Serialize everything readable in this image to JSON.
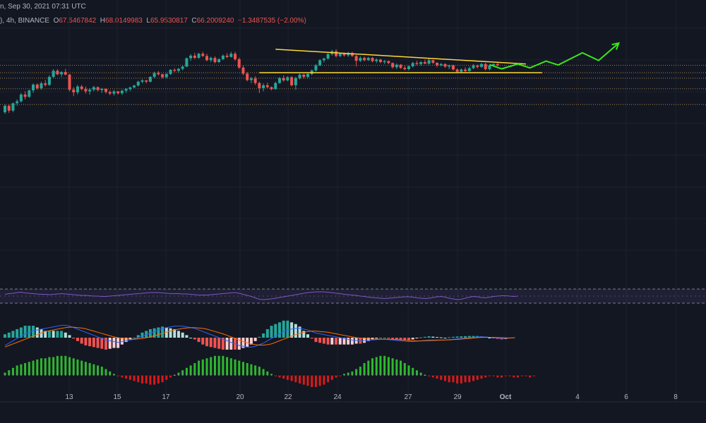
{
  "header": {
    "date_line": "n, Sep 30, 2021 07:31 UTC",
    "symbol_line": "), 4h, BINANCE",
    "ohlc": {
      "o_label": "O",
      "o": "67.5467842",
      "h_label": "H",
      "h": "68.0149983",
      "l_label": "L",
      "l": "65.9530817",
      "c_label": "C",
      "c": "66.2009240",
      "change": "−1.3487535 (−2.00%)"
    }
  },
  "colors": {
    "background": "#131722",
    "up": "#26a69a",
    "down": "#ef5350",
    "trendline": "#fdd835",
    "projection": "#39e617",
    "rsi_line": "#7e57c2",
    "macd_line": "#2962ff",
    "signal_line": "#ff6d00",
    "level_line": "#d4a25a"
  },
  "chart_data": [
    {
      "type": "candlestick",
      "x_axis": {
        "tick_labels": [
          "13",
          "15",
          "17",
          "20",
          "22",
          "24",
          "27",
          "29",
          "Oct",
          "4",
          "6",
          "8"
        ],
        "bold_ticks": [
          "Oct"
        ]
      },
      "candles": [
        [
          55.0,
          57.5,
          54.5,
          57.0
        ],
        [
          57.0,
          57.5,
          54.8,
          55.5
        ],
        [
          55.5,
          58.0,
          55.0,
          57.8
        ],
        [
          57.8,
          59.0,
          57.0,
          58.4
        ],
        [
          58.4,
          61.0,
          58.0,
          60.5
        ],
        [
          60.5,
          61.5,
          59.0,
          59.8
        ],
        [
          59.8,
          62.0,
          59.5,
          61.8
        ],
        [
          61.8,
          64.0,
          61.0,
          63.6
        ],
        [
          63.6,
          64.0,
          62.0,
          62.5
        ],
        [
          62.5,
          64.5,
          62.0,
          64.0
        ],
        [
          64.0,
          65.0,
          63.0,
          63.5
        ],
        [
          63.5,
          66.5,
          63.2,
          66.0
        ],
        [
          66.0,
          68.4,
          65.5,
          67.9
        ],
        [
          67.9,
          68.4,
          66.5,
          66.8
        ],
        [
          66.8,
          67.8,
          66.0,
          67.5
        ],
        [
          67.5,
          68.5,
          66.5,
          66.7
        ],
        [
          66.7,
          66.9,
          61.5,
          62.0
        ],
        [
          62.0,
          62.8,
          60.0,
          61.2
        ],
        [
          61.2,
          63.5,
          60.5,
          63.0
        ],
        [
          63.0,
          63.5,
          61.8,
          62.2
        ],
        [
          62.2,
          63.0,
          60.8,
          61.5
        ],
        [
          61.5,
          62.5,
          60.5,
          62.0
        ],
        [
          62.0,
          63.2,
          61.5,
          62.8
        ],
        [
          62.8,
          63.0,
          61.5,
          61.9
        ],
        [
          61.9,
          62.6,
          61.0,
          62.3
        ],
        [
          62.3,
          62.4,
          60.8,
          61.3
        ],
        [
          61.3,
          61.8,
          60.3,
          60.8
        ],
        [
          60.8,
          61.9,
          60.2,
          61.5
        ],
        [
          61.5,
          61.6,
          60.5,
          60.9
        ],
        [
          60.9,
          62.0,
          60.4,
          61.7
        ],
        [
          61.7,
          62.5,
          61.0,
          62.2
        ],
        [
          62.2,
          63.0,
          61.6,
          62.7
        ],
        [
          62.7,
          63.6,
          62.5,
          63.3
        ],
        [
          63.3,
          64.8,
          63.0,
          64.5
        ],
        [
          64.5,
          65.3,
          64.0,
          64.9
        ],
        [
          64.9,
          65.0,
          64.0,
          64.5
        ],
        [
          64.5,
          66.2,
          64.3,
          66.0
        ],
        [
          66.0,
          67.6,
          65.6,
          67.2
        ],
        [
          67.2,
          67.8,
          66.4,
          66.8
        ],
        [
          66.8,
          67.0,
          65.5,
          65.9
        ],
        [
          65.9,
          67.2,
          65.6,
          66.9
        ],
        [
          66.9,
          68.4,
          66.6,
          68.2
        ],
        [
          68.2,
          68.7,
          67.5,
          67.9
        ],
        [
          67.9,
          68.8,
          67.3,
          68.5
        ],
        [
          68.5,
          69.5,
          68.0,
          69.2
        ],
        [
          69.2,
          72.0,
          69.0,
          71.8
        ],
        [
          71.8,
          73.1,
          71.0,
          72.6
        ],
        [
          72.6,
          73.5,
          71.5,
          71.9
        ],
        [
          71.9,
          73.5,
          71.6,
          73.2
        ],
        [
          73.2,
          73.8,
          72.2,
          72.5
        ],
        [
          72.5,
          73.2,
          70.8,
          71.2
        ],
        [
          71.2,
          72.3,
          70.6,
          71.9
        ],
        [
          71.9,
          72.4,
          70.2,
          70.6
        ],
        [
          70.6,
          71.8,
          70.3,
          71.5
        ],
        [
          71.5,
          73.0,
          71.2,
          72.6
        ],
        [
          72.6,
          73.4,
          71.8,
          72.2
        ],
        [
          72.2,
          73.8,
          72.0,
          73.2
        ],
        [
          73.2,
          73.8,
          71.0,
          71.5
        ],
        [
          71.5,
          72.0,
          68.5,
          68.9
        ],
        [
          68.9,
          69.5,
          66.5,
          67.0
        ],
        [
          67.0,
          67.5,
          64.6,
          65.0
        ],
        [
          65.0,
          66.0,
          64.0,
          65.5
        ],
        [
          65.5,
          66.2,
          63.5,
          64.1
        ],
        [
          64.1,
          64.5,
          61.0,
          62.5
        ],
        [
          62.5,
          64.0,
          61.5,
          63.4
        ],
        [
          63.4,
          64.2,
          62.5,
          62.8
        ],
        [
          62.8,
          63.0,
          61.8,
          62.2
        ],
        [
          62.2,
          64.5,
          62.0,
          64.1
        ],
        [
          64.1,
          66.0,
          63.8,
          65.6
        ],
        [
          65.6,
          66.5,
          64.5,
          64.9
        ],
        [
          64.9,
          66.2,
          64.6,
          65.9
        ],
        [
          65.9,
          66.2,
          63.0,
          63.4
        ],
        [
          63.4,
          66.0,
          62.0,
          65.6
        ],
        [
          65.6,
          67.0,
          65.2,
          66.7
        ],
        [
          66.7,
          67.0,
          65.5,
          66.0
        ],
        [
          66.0,
          67.2,
          65.6,
          66.9
        ],
        [
          66.9,
          68.3,
          66.5,
          68.0
        ],
        [
          68.0,
          70.0,
          67.6,
          69.6
        ],
        [
          69.6,
          71.5,
          69.3,
          71.2
        ],
        [
          71.2,
          72.0,
          70.5,
          71.7
        ],
        [
          71.7,
          73.4,
          71.3,
          73.1
        ],
        [
          73.1,
          74.4,
          72.6,
          74.0
        ],
        [
          74.0,
          74.6,
          72.0,
          72.5
        ],
        [
          72.5,
          73.6,
          72.1,
          73.2
        ],
        [
          73.2,
          73.6,
          72.3,
          72.7
        ],
        [
          72.7,
          73.8,
          72.2,
          73.4
        ],
        [
          73.4,
          73.8,
          72.2,
          72.5
        ],
        [
          72.5,
          72.8,
          69.2,
          71.0
        ],
        [
          71.0,
          72.4,
          70.6,
          71.9
        ],
        [
          71.9,
          72.3,
          70.8,
          71.2
        ],
        [
          71.2,
          72.2,
          70.9,
          71.9
        ],
        [
          71.9,
          72.2,
          70.5,
          70.9
        ],
        [
          70.9,
          71.8,
          70.3,
          71.4
        ],
        [
          71.4,
          71.6,
          70.3,
          70.6
        ],
        [
          70.6,
          71.3,
          70.0,
          70.9
        ],
        [
          70.9,
          71.1,
          70.0,
          70.3
        ],
        [
          70.3,
          70.5,
          68.6,
          69.0
        ],
        [
          69.0,
          70.2,
          68.4,
          69.8
        ],
        [
          69.8,
          70.0,
          68.5,
          68.8
        ],
        [
          68.8,
          69.5,
          68.0,
          68.4
        ],
        [
          68.4,
          69.6,
          68.0,
          69.3
        ],
        [
          69.3,
          70.7,
          68.9,
          70.3
        ],
        [
          70.3,
          71.0,
          69.6,
          70.0
        ],
        [
          70.0,
          70.9,
          69.5,
          70.6
        ],
        [
          70.6,
          71.4,
          70.0,
          70.1
        ],
        [
          70.1,
          71.6,
          69.8,
          71.2
        ],
        [
          71.2,
          71.3,
          70.0,
          70.4
        ],
        [
          70.4,
          70.5,
          69.0,
          69.6
        ],
        [
          69.6,
          70.3,
          69.2,
          70.0
        ],
        [
          70.0,
          70.2,
          68.8,
          69.2
        ],
        [
          69.2,
          69.8,
          68.4,
          69.6
        ],
        [
          69.6,
          69.8,
          68.0,
          68.3
        ],
        [
          68.3,
          68.6,
          67.1,
          67.6
        ],
        [
          67.6,
          68.6,
          67.4,
          68.3
        ],
        [
          68.3,
          69.0,
          67.5,
          67.8
        ],
        [
          67.8,
          69.2,
          67.6,
          68.7
        ],
        [
          68.7,
          70.0,
          68.4,
          69.5
        ],
        [
          69.5,
          69.8,
          68.6,
          69.1
        ],
        [
          69.1,
          70.3,
          68.8,
          70.0
        ],
        [
          70.0,
          70.4,
          68.0,
          68.4
        ],
        [
          68.4,
          69.8,
          68.0,
          69.6
        ],
        [
          69.6,
          70.2,
          69.2,
          70.0
        ],
        [
          70.0,
          70.3,
          69.3,
          69.6
        ]
      ],
      "levels": [
        69.6,
        67.3,
        65.6,
        62.3,
        57.4
      ],
      "support_level": 67.3,
      "triangle_top": {
        "from_index": 67,
        "from_value": 74.6,
        "to_index": 129,
        "to_value": 70.0
      },
      "support_line": {
        "from_index": 63,
        "to_index": 133
      },
      "projection_path": [
        [
          120,
          69.8
        ],
        [
          123,
          68.5
        ],
        [
          127,
          70.0
        ],
        [
          130,
          68.8
        ],
        [
          134,
          70.9
        ],
        [
          137,
          69.7
        ],
        [
          143,
          73.5
        ],
        [
          147,
          71.1
        ],
        [
          152,
          76.5
        ]
      ]
    },
    {
      "type": "line",
      "name_role": "rsi-panel",
      "band": [
        30,
        70
      ],
      "values": [
        55,
        57,
        58,
        60,
        61,
        59,
        58,
        57,
        56,
        55,
        55,
        54,
        55,
        56,
        57,
        56,
        55,
        54,
        53,
        52,
        52,
        51,
        50,
        50,
        49,
        49,
        50,
        51,
        52,
        53,
        54,
        55,
        56,
        57,
        58,
        59,
        60,
        60,
        60,
        59,
        58,
        57,
        57,
        57,
        56,
        56,
        55,
        54,
        53,
        53,
        53,
        54,
        55,
        56,
        57,
        58,
        59,
        60,
        58,
        55,
        52,
        49,
        45,
        41,
        40,
        41,
        42,
        44,
        46,
        48,
        50,
        52,
        54,
        56,
        58,
        60,
        61,
        62,
        62,
        62,
        61,
        60,
        58,
        57,
        55,
        54,
        53,
        52,
        50,
        49,
        47,
        46,
        45,
        44,
        43,
        44,
        45,
        46,
        47,
        48,
        48,
        47,
        45,
        44,
        43,
        44,
        46,
        48,
        49,
        47,
        44,
        42,
        40,
        41,
        44,
        47,
        49,
        48,
        46,
        45,
        47,
        49,
        50,
        51,
        51,
        50,
        49,
        50
      ]
    },
    {
      "type": "line",
      "name_role": "macd-panel",
      "macd": [
        -1.0,
        -0.7,
        -0.4,
        -0.1,
        0.2,
        0.5,
        0.7,
        0.9,
        1.0,
        1.1,
        1.2,
        1.3,
        1.4,
        1.5,
        1.6,
        1.6,
        1.5,
        1.3,
        1.1,
        0.9,
        0.7,
        0.5,
        0.3,
        0.1,
        -0.1,
        -0.3,
        -0.4,
        -0.5,
        -0.6,
        -0.5,
        -0.4,
        -0.3,
        -0.2,
        0.0,
        0.2,
        0.4,
        0.6,
        0.8,
        1.0,
        1.2,
        1.3,
        1.4,
        1.5,
        1.5,
        1.5,
        1.4,
        1.3,
        1.2,
        1.0,
        0.8,
        0.6,
        0.4,
        0.2,
        0.0,
        -0.2,
        -0.4,
        -0.6,
        -0.8,
        -1.0,
        -1.1,
        -1.2,
        -1.2,
        -1.1,
        -0.9,
        -0.7,
        -0.4,
        -0.1,
        0.2,
        0.5,
        0.8,
        1.0,
        1.1,
        1.2,
        1.2,
        1.1,
        1.0,
        0.8,
        0.6,
        0.5,
        0.4,
        0.3,
        0.2,
        0.1,
        0.0,
        -0.1,
        -0.2,
        -0.3,
        -0.35,
        -0.4,
        -0.4,
        -0.35,
        -0.3,
        -0.25,
        -0.2,
        -0.2,
        -0.25,
        -0.3,
        -0.35,
        -0.4,
        -0.45,
        -0.5,
        -0.5,
        -0.45,
        -0.4,
        -0.35,
        -0.3,
        -0.3,
        -0.3,
        -0.3,
        -0.3,
        -0.25,
        -0.2,
        -0.15,
        -0.1,
        -0.05,
        0.0,
        0.05,
        0.1,
        0.1,
        0.1,
        0.05,
        0.0,
        -0.05,
        -0.1,
        -0.1,
        -0.05,
        0.0
      ],
      "signal": [
        -1.2,
        -1.0,
        -0.8,
        -0.6,
        -0.4,
        -0.2,
        0.0,
        0.2,
        0.4,
        0.6,
        0.8,
        0.9,
        1.0,
        1.1,
        1.2,
        1.3,
        1.35,
        1.35,
        1.3,
        1.25,
        1.15,
        1.0,
        0.85,
        0.7,
        0.55,
        0.4,
        0.25,
        0.1,
        0.0,
        -0.1,
        -0.15,
        -0.2,
        -0.2,
        -0.15,
        -0.1,
        0.0,
        0.1,
        0.25,
        0.4,
        0.55,
        0.7,
        0.85,
        1.0,
        1.1,
        1.2,
        1.25,
        1.3,
        1.3,
        1.25,
        1.2,
        1.1,
        0.95,
        0.8,
        0.65,
        0.5,
        0.3,
        0.1,
        -0.1,
        -0.3,
        -0.5,
        -0.65,
        -0.8,
        -0.9,
        -0.95,
        -0.95,
        -0.9,
        -0.8,
        -0.6,
        -0.4,
        -0.2,
        0.0,
        0.2,
        0.4,
        0.55,
        0.7,
        0.8,
        0.85,
        0.85,
        0.8,
        0.75,
        0.7,
        0.6,
        0.5,
        0.4,
        0.3,
        0.2,
        0.1,
        0.0,
        -0.05,
        -0.1,
        -0.15,
        -0.2,
        -0.2,
        -0.2,
        -0.2,
        -0.2,
        -0.22,
        -0.25,
        -0.28,
        -0.32,
        -0.36,
        -0.4,
        -0.42,
        -0.42,
        -0.4,
        -0.38,
        -0.36,
        -0.34,
        -0.32,
        -0.3,
        -0.28,
        -0.25,
        -0.22,
        -0.18,
        -0.14,
        -0.1,
        -0.05,
        0.0,
        0.03,
        0.05,
        0.05,
        0.04,
        0.02,
        0.0,
        -0.02,
        -0.03,
        -0.02
      ]
    },
    {
      "type": "bar",
      "name_role": "momentum-histogram",
      "values": [
        2,
        4,
        6,
        8,
        9,
        10,
        11,
        12,
        13,
        14,
        14,
        15,
        15,
        16,
        16,
        16,
        15,
        14,
        13,
        12,
        11,
        10,
        9,
        8,
        7,
        5,
        3,
        1,
        -1,
        -2,
        -3,
        -4,
        -5,
        -6,
        -7,
        -7,
        -8,
        -8,
        -7,
        -6,
        -4,
        -2,
        0,
        2,
        4,
        6,
        8,
        10,
        12,
        13,
        14,
        15,
        16,
        16,
        16,
        15,
        14,
        13,
        12,
        11,
        10,
        9,
        8,
        7,
        5,
        3,
        1,
        -1,
        -2,
        -3,
        -4,
        -5,
        -6,
        -7,
        -8,
        -9,
        -10,
        -10,
        -9,
        -8,
        -6,
        -4,
        -2,
        -1,
        1,
        2,
        3,
        5,
        7,
        10,
        12,
        14,
        15,
        16,
        16,
        15,
        14,
        13,
        12,
        10,
        8,
        6,
        4,
        2,
        0,
        -1,
        -2,
        -3,
        -4,
        -5,
        -6,
        -6,
        -7,
        -7,
        -6,
        -6,
        -5,
        -4,
        -3,
        -2,
        -1,
        -1,
        -2,
        -2,
        -1,
        -1,
        -2,
        -2,
        -1,
        -1,
        -2,
        -1
      ]
    }
  ]
}
